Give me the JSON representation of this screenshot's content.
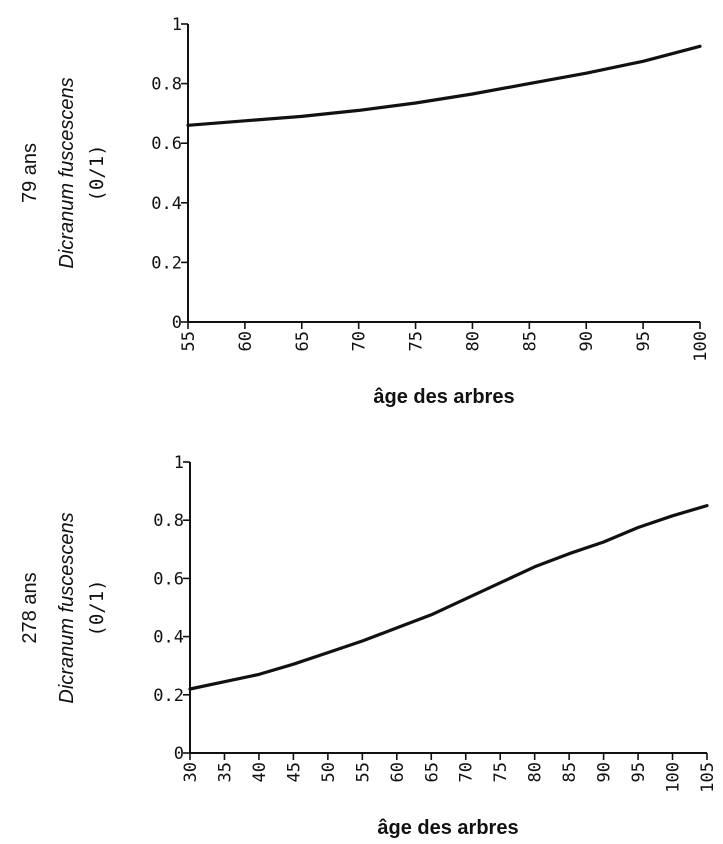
{
  "chart_data": [
    {
      "type": "line",
      "title": "",
      "ylabel_lines": [
        "79 ans",
        "Dicranum fuscescens",
        "(0/1)"
      ],
      "xlabel": "âge des arbres",
      "xlim": [
        55,
        100
      ],
      "ylim": [
        0,
        1
      ],
      "x_ticks": [
        "55",
        "60",
        "65",
        "70",
        "75",
        "80",
        "85",
        "90",
        "95",
        "100"
      ],
      "y_ticks": [
        "0",
        "0.2",
        "0.4",
        "0.6",
        "0.8",
        "1"
      ],
      "series": [
        {
          "x": [
            55,
            60,
            65,
            70,
            75,
            80,
            85,
            90,
            95,
            100
          ],
          "values": [
            0.66,
            0.675,
            0.69,
            0.71,
            0.735,
            0.765,
            0.8,
            0.835,
            0.875,
            0.925
          ]
        }
      ]
    },
    {
      "type": "line",
      "title": "",
      "ylabel_lines": [
        "278 ans",
        "Dicranum fuscescens",
        "(0/1)"
      ],
      "xlabel": "âge des arbres",
      "xlim": [
        30,
        105
      ],
      "ylim": [
        0,
        1
      ],
      "x_ticks": [
        "30",
        "35",
        "40",
        "45",
        "50",
        "55",
        "60",
        "65",
        "70",
        "75",
        "80",
        "85",
        "90",
        "95",
        "100",
        "105"
      ],
      "y_ticks": [
        "0",
        "0.2",
        "0.4",
        "0.6",
        "0.8",
        "1"
      ],
      "series": [
        {
          "x": [
            30,
            35,
            40,
            45,
            50,
            55,
            60,
            65,
            70,
            75,
            80,
            85,
            90,
            95,
            100,
            105
          ],
          "values": [
            0.22,
            0.245,
            0.27,
            0.305,
            0.345,
            0.385,
            0.43,
            0.475,
            0.53,
            0.585,
            0.64,
            0.685,
            0.725,
            0.775,
            0.815,
            0.85
          ]
        }
      ]
    }
  ]
}
